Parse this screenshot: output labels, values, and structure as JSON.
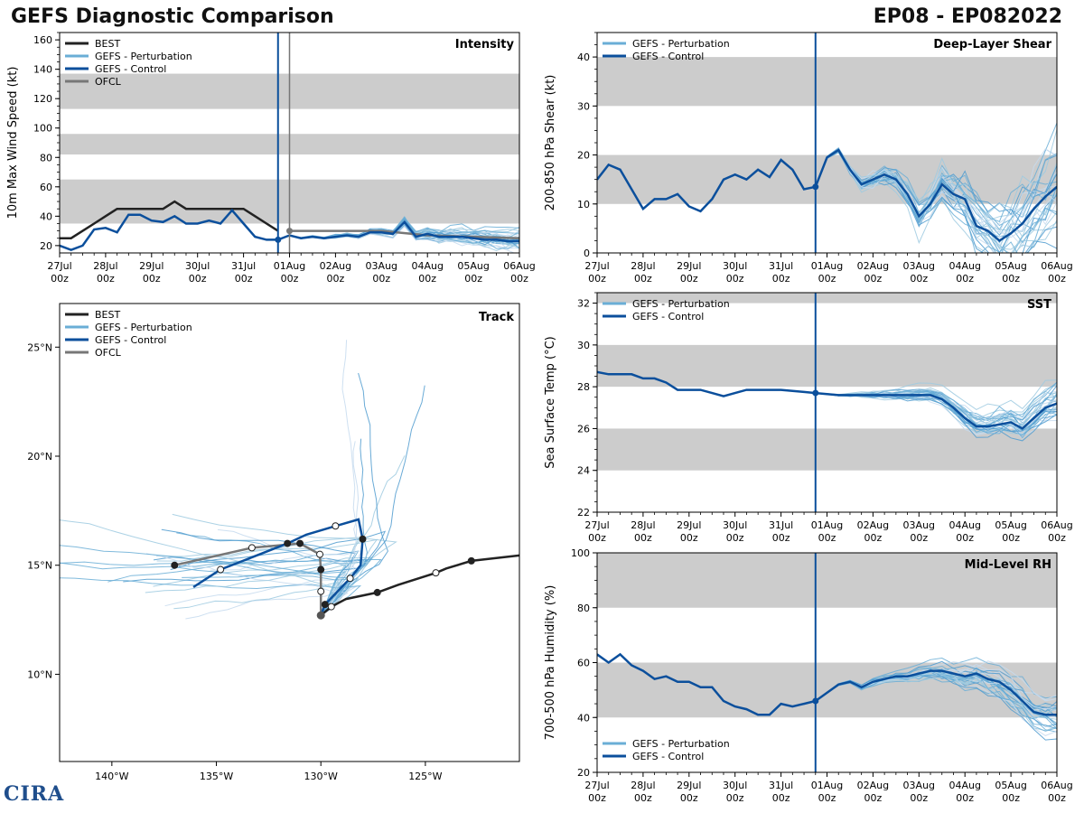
{
  "header": {
    "left_title": "GEFS Diagnostic Comparison",
    "right_title": "EP08 - EP082022"
  },
  "logo_text": "CIRA",
  "colors": {
    "best": "#222222",
    "perturbation": "#6aaed6",
    "control": "#0b4f9c",
    "ofcl": "#777777",
    "band": "#cccccc"
  },
  "time_axis": {
    "ticks": [
      "27Jul",
      "28Jul",
      "29Jul",
      "30Jul",
      "31Jul",
      "01Aug",
      "02Aug",
      "03Aug",
      "04Aug",
      "05Aug",
      "06Aug"
    ],
    "subticks": [
      "00z",
      "00z",
      "00z",
      "00z",
      "00z",
      "00z",
      "00z",
      "00z",
      "00z",
      "00z",
      "00z"
    ],
    "init_day": 4.75,
    "ofcl_day": 5.0
  },
  "chart_data": [
    {
      "id": "intensity",
      "type": "line",
      "title": "Intensity",
      "ylabel": "10m Max Wind Speed (kt)",
      "ylim": [
        15,
        165
      ],
      "yticks": [
        20,
        40,
        60,
        80,
        100,
        120,
        140,
        160
      ],
      "bands": [
        [
          35,
          65
        ],
        [
          82,
          96
        ],
        [
          113,
          137
        ]
      ],
      "legend": [
        "BEST",
        "GEFS - Perturbation",
        "GEFS - Control",
        "OFCL"
      ],
      "best": {
        "x": [
          0,
          0.25,
          0.5,
          0.75,
          1,
          1.25,
          1.5,
          1.75,
          2,
          2.25,
          2.5,
          2.75,
          3,
          3.25,
          3.5,
          3.75,
          4,
          4.25,
          4.5,
          4.75
        ],
        "y": [
          25,
          25,
          30,
          35,
          40,
          45,
          45,
          45,
          45,
          45,
          50,
          45,
          45,
          45,
          45,
          45,
          45,
          40,
          35,
          30
        ]
      },
      "control": {
        "x": [
          0,
          0.25,
          0.5,
          0.75,
          1,
          1.25,
          1.5,
          1.75,
          2,
          2.25,
          2.5,
          2.75,
          3,
          3.25,
          3.5,
          3.75,
          4,
          4.25,
          4.5,
          4.75,
          5,
          5.25,
          5.5,
          5.75,
          6,
          6.25,
          6.5,
          6.75,
          7,
          7.25,
          7.5,
          7.75,
          8,
          8.25,
          8.5,
          8.75,
          9,
          9.25,
          9.5,
          9.75,
          10
        ],
        "y": [
          20,
          17,
          20,
          31,
          32,
          29,
          41,
          41,
          37,
          36,
          40,
          35,
          35,
          37,
          35,
          44,
          35,
          26,
          24,
          24,
          27,
          25,
          26,
          25,
          26,
          27,
          26,
          29,
          29,
          28,
          36,
          26,
          28,
          26,
          26,
          26,
          25,
          24,
          24,
          23,
          23
        ]
      },
      "ofcl": {
        "x": [
          5,
          6,
          7,
          8,
          9,
          10
        ],
        "y": [
          30,
          30,
          30,
          27,
          26,
          25
        ]
      }
    },
    {
      "id": "shear",
      "type": "line",
      "title": "Deep-Layer Shear",
      "ylabel": "200-850 hPa Shear (kt)",
      "ylim": [
        0,
        45
      ],
      "yticks": [
        0,
        10,
        20,
        30,
        40
      ],
      "bands": [
        [
          10,
          20
        ],
        [
          30,
          40
        ]
      ],
      "legend": [
        "GEFS - Perturbation",
        "GEFS - Control"
      ],
      "control": {
        "x": [
          0,
          0.25,
          0.5,
          0.75,
          1,
          1.25,
          1.5,
          1.75,
          2,
          2.25,
          2.5,
          2.75,
          3,
          3.25,
          3.5,
          3.75,
          4,
          4.25,
          4.5,
          4.75,
          5,
          5.25,
          5.5,
          5.75,
          6,
          6.25,
          6.5,
          6.75,
          7,
          7.25,
          7.5,
          7.75,
          8,
          8.25,
          8.5,
          8.75,
          9,
          9.25,
          9.5,
          9.75,
          10
        ],
        "y": [
          15,
          18,
          17,
          13,
          9,
          11,
          11,
          12,
          9.5,
          8.5,
          11,
          15,
          16,
          15,
          17,
          15.5,
          19,
          17,
          13,
          13.5,
          19.5,
          21,
          17,
          14,
          15,
          16,
          15,
          12,
          7.5,
          10,
          14,
          12,
          11,
          5.5,
          4.5,
          2.5,
          4,
          6,
          9,
          11.5,
          13.5
        ]
      }
    },
    {
      "id": "sst",
      "type": "line",
      "title": "SST",
      "ylabel": "Sea Surface Temp (°C)",
      "ylim": [
        22,
        32.5
      ],
      "yticks": [
        22,
        24,
        26,
        28,
        30,
        32
      ],
      "bands": [
        [
          24,
          26
        ],
        [
          28,
          30
        ],
        [
          32,
          33
        ]
      ],
      "legend": [
        "GEFS - Perturbation",
        "GEFS - Control"
      ],
      "control": {
        "x": [
          0,
          0.25,
          0.5,
          0.75,
          1,
          1.25,
          1.5,
          1.75,
          2,
          2.25,
          2.5,
          2.75,
          3,
          3.25,
          3.5,
          3.75,
          4,
          4.25,
          4.5,
          4.75,
          5,
          5.25,
          5.5,
          5.75,
          6,
          6.25,
          6.5,
          6.75,
          7,
          7.25,
          7.5,
          7.75,
          8,
          8.25,
          8.5,
          8.75,
          9,
          9.25,
          9.5,
          9.75,
          10
        ],
        "y": [
          28.7,
          28.6,
          28.6,
          28.6,
          28.4,
          28.4,
          28.2,
          27.85,
          27.85,
          27.85,
          27.7,
          27.55,
          27.7,
          27.85,
          27.85,
          27.85,
          27.85,
          27.8,
          27.75,
          27.7,
          27.65,
          27.6,
          27.6,
          27.6,
          27.6,
          27.6,
          27.6,
          27.6,
          27.6,
          27.6,
          27.4,
          27.0,
          26.5,
          26.1,
          26.1,
          26.2,
          26.3,
          26.0,
          26.5,
          27.0,
          27.2
        ]
      }
    },
    {
      "id": "rh",
      "type": "line",
      "title": "Mid-Level RH",
      "ylabel": "700-500 hPa Humidity (%)",
      "ylim": [
        20,
        100
      ],
      "yticks": [
        20,
        40,
        60,
        80,
        100
      ],
      "bands": [
        [
          40,
          60
        ],
        [
          80,
          100
        ]
      ],
      "legend": [
        "GEFS - Perturbation",
        "GEFS - Control"
      ],
      "control": {
        "x": [
          0,
          0.25,
          0.5,
          0.75,
          1,
          1.25,
          1.5,
          1.75,
          2,
          2.25,
          2.5,
          2.75,
          3,
          3.25,
          3.5,
          3.75,
          4,
          4.25,
          4.5,
          4.75,
          5,
          5.25,
          5.5,
          5.75,
          6,
          6.25,
          6.5,
          6.75,
          7,
          7.25,
          7.5,
          7.75,
          8,
          8.25,
          8.5,
          8.75,
          9,
          9.25,
          9.5,
          9.75,
          10
        ],
        "y": [
          63,
          60,
          63,
          59,
          57,
          54,
          55,
          53,
          53,
          51,
          51,
          46,
          44,
          43,
          41,
          41,
          45,
          44,
          45,
          46,
          49,
          52,
          53,
          51,
          53,
          54,
          55,
          55,
          56,
          57,
          57,
          56,
          55,
          56,
          54,
          53,
          50,
          46,
          42,
          41,
          41
        ]
      }
    },
    {
      "id": "track",
      "type": "line",
      "title": "Track",
      "xlim": [
        -142.5,
        -120.5
      ],
      "ylim": [
        6,
        27
      ],
      "xticks": [
        -140,
        -135,
        -130,
        -125
      ],
      "xtick_labels": [
        "140°W",
        "135°W",
        "130°W",
        "125°W"
      ],
      "yticks": [
        10,
        15,
        20,
        25
      ],
      "ytick_labels": [
        "10°N",
        "15°N",
        "20°N",
        "25°N"
      ],
      "legend": [
        "BEST",
        "GEFS - Perturbation",
        "GEFS - Control",
        "OFCL"
      ],
      "best": {
        "lon": [
          -120.5,
          -122.8,
          -124.0,
          -124.5,
          -126.3,
          -127.3,
          -128.8,
          -129.5,
          -130.0
        ],
        "lat": [
          15.45,
          15.2,
          14.85,
          14.65,
          14.1,
          13.75,
          13.45,
          13.1,
          12.7
        ]
      },
      "control": {
        "lon": [
          -130.0,
          -129.8,
          -129.2,
          -128.6,
          -128.1,
          -128.0,
          -128.2,
          -129.3,
          -130.7,
          -131.6,
          -133.2,
          -134.8,
          -136.1
        ],
        "lat": [
          12.7,
          13.2,
          13.8,
          14.4,
          15.0,
          16.2,
          17.1,
          16.8,
          16.4,
          16.0,
          15.4,
          14.8,
          14.0
        ]
      },
      "ofcl": {
        "lon": [
          -130.0,
          -130.0,
          -130.0,
          -130.05,
          -131.0,
          -133.3,
          -137.0
        ],
        "lat": [
          12.7,
          13.8,
          14.8,
          15.5,
          16.0,
          15.8,
          15.0
        ]
      }
    }
  ]
}
